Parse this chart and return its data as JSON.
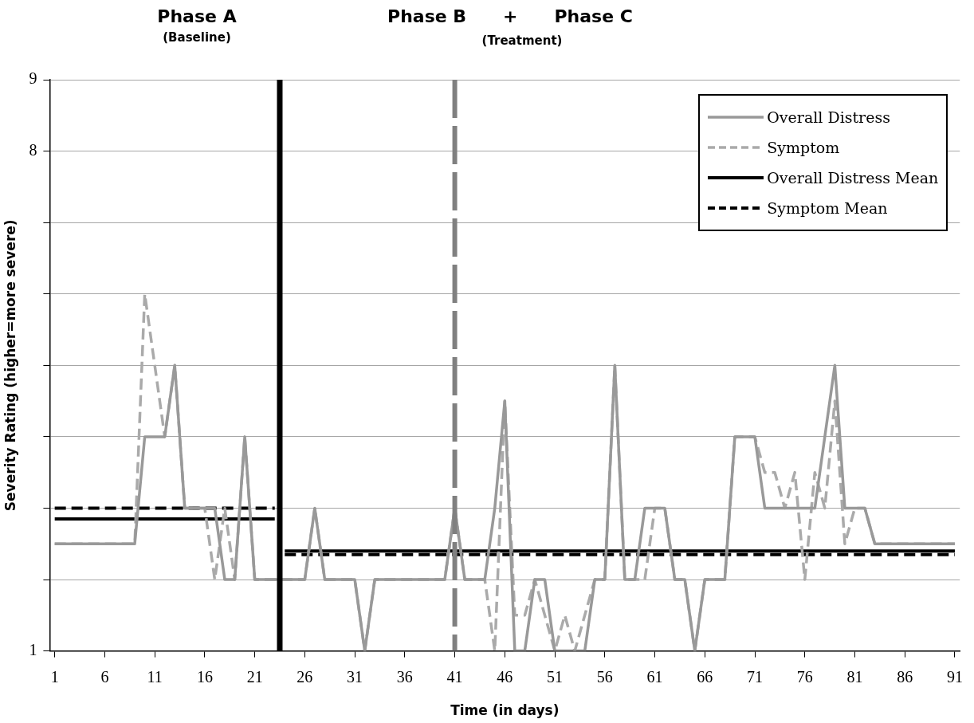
{
  "chart_data": {
    "type": "line",
    "xlabel": "Time (in days)",
    "ylabel": "Severity Rating (higher=more severe)",
    "annotations": [
      "Phase A",
      "(Baseline)",
      "Phase B + Phase C",
      "(Treatment)"
    ],
    "x": [
      1,
      2,
      3,
      4,
      5,
      6,
      7,
      8,
      9,
      10,
      11,
      12,
      13,
      14,
      15,
      16,
      17,
      18,
      19,
      20,
      21,
      22,
      23,
      24,
      25,
      26,
      27,
      28,
      29,
      30,
      31,
      32,
      33,
      34,
      35,
      36,
      37,
      38,
      39,
      40,
      41,
      42,
      43,
      44,
      45,
      46,
      47,
      48,
      49,
      50,
      51,
      52,
      53,
      54,
      55,
      56,
      57,
      58,
      59,
      60,
      61,
      62,
      63,
      64,
      65,
      66,
      67,
      68,
      69,
      70,
      71,
      72,
      73,
      74,
      75,
      76,
      77,
      78,
      79,
      80,
      81,
      82,
      83,
      84,
      85,
      86,
      87,
      88,
      89,
      90,
      91
    ],
    "series": [
      {
        "name": "Overall Distress",
        "color": "#999999",
        "line_style": "solid",
        "values": [
          2.5,
          2.5,
          2.5,
          2.5,
          2.5,
          2.5,
          2.5,
          2.5,
          2.5,
          4,
          4,
          4,
          5,
          3,
          3,
          3,
          3,
          2,
          2,
          4,
          2,
          2,
          2,
          2,
          2,
          2,
          3,
          2,
          2,
          2,
          2,
          1,
          2,
          2,
          2,
          2,
          2,
          2,
          2,
          2,
          3,
          2,
          2,
          2,
          3,
          4.5,
          1,
          1,
          2,
          2,
          1,
          1,
          1,
          1,
          2,
          2,
          5,
          2,
          2,
          3,
          3,
          3,
          2,
          2,
          1,
          2,
          2,
          2,
          4,
          4,
          4,
          3,
          3,
          3,
          3,
          3,
          3,
          4,
          5,
          3,
          3,
          3,
          2.5,
          2.5,
          2.5,
          2.5,
          2.5,
          2.5,
          2.5,
          2.5,
          2.5
        ]
      },
      {
        "name": "Symptom",
        "color": "#aaaaaa",
        "line_style": "dashed",
        "values": [
          2.5,
          2.5,
          2.5,
          2.5,
          2.5,
          2.5,
          2.5,
          2.5,
          2.5,
          6,
          5,
          4,
          5,
          3,
          3,
          3,
          2,
          3,
          2,
          4,
          2,
          2,
          2,
          2,
          2,
          2,
          3,
          2,
          2,
          2,
          2,
          1,
          2,
          2,
          2,
          2,
          2,
          2,
          2,
          2,
          3,
          2,
          2,
          2,
          1,
          4.5,
          1.5,
          1.5,
          2,
          1.5,
          1,
          1.5,
          1,
          1.5,
          2,
          2,
          5,
          2,
          2,
          2,
          3,
          3,
          2,
          2,
          1,
          2,
          2,
          2,
          4,
          4,
          4,
          3.5,
          3.5,
          3,
          3.5,
          2,
          3.5,
          3,
          4.5,
          2.5,
          3,
          3,
          2.5,
          2.5,
          2.5,
          2.5,
          2.5,
          2.5,
          2.5,
          2.5,
          2.5
        ]
      },
      {
        "name": "Overall Distress Mean",
        "color": "#000000",
        "line_style": "solid",
        "x": [
          1,
          23,
          23.5,
          24,
          91
        ],
        "values": [
          2.85,
          2.85,
          null,
          2.4,
          2.4
        ]
      },
      {
        "name": "Symptom Mean",
        "color": "#000000",
        "line_style": "dashed",
        "x": [
          1,
          23,
          23.5,
          24,
          91
        ],
        "values": [
          3,
          3,
          null,
          2.35,
          2.35
        ]
      }
    ],
    "ref_lines": [
      {
        "axis": "x",
        "value": 23.5,
        "color": "#000000",
        "line_style": "solid"
      },
      {
        "axis": "x",
        "value": 41,
        "color": "#808080",
        "line_style": "dashed"
      }
    ],
    "xlim": [
      0.5,
      91.5
    ],
    "xticks": [
      1,
      6,
      11,
      16,
      21,
      26,
      31,
      36,
      41,
      46,
      51,
      56,
      61,
      66,
      71,
      76,
      81,
      86,
      91
    ],
    "ylim": [
      1,
      9
    ],
    "yticks": [
      1,
      {
        "value": 2,
        "label": null
      },
      {
        "value": 3,
        "label": null
      },
      {
        "value": 4,
        "label": null
      },
      {
        "value": 5,
        "label": null
      },
      {
        "value": 6,
        "label": null
      },
      {
        "value": 7,
        "label": null
      },
      8,
      9
    ],
    "grid": "y",
    "legend": "top right",
    "marker": "none"
  }
}
